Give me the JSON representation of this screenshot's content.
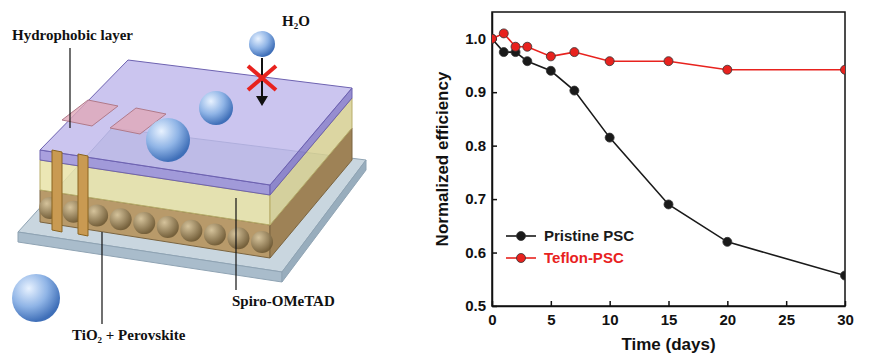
{
  "chart_data": {
    "type": "line",
    "x_label": "Time (days)",
    "y_label": "Normalized efficiency",
    "x": [
      0,
      1,
      2,
      3,
      5,
      7,
      10,
      15,
      20,
      30
    ],
    "series": [
      {
        "name": "Pristine PSC",
        "color": "#1a1a1a",
        "marker": "circle",
        "line_style": "solid",
        "values": [
          1.0,
          0.975,
          0.975,
          0.958,
          0.94,
          0.903,
          0.815,
          0.69,
          0.62,
          0.557
        ]
      },
      {
        "name": "Teflon-PSC",
        "color": "#e8221e",
        "marker": "circle",
        "line_style": "solid",
        "values": [
          1.0,
          1.01,
          0.985,
          0.985,
          0.967,
          0.975,
          0.958,
          0.958,
          0.942,
          0.942
        ]
      }
    ],
    "xlim": [
      0,
      30
    ],
    "xticks": [
      0,
      5,
      10,
      15,
      20,
      25,
      30
    ],
    "ylim": [
      0.5,
      1.05
    ],
    "yticks": [
      0.5,
      0.6,
      0.7,
      0.8,
      0.9,
      {
        "value": 1,
        "label": "1.0"
      }
    ],
    "legend": "lower left",
    "grid": false
  },
  "diagram": {
    "labels": [
      "Hydrophobic layer",
      "H₂O",
      "Spiro-OMeTAD",
      "TiO₂ + Perovskite"
    ]
  }
}
